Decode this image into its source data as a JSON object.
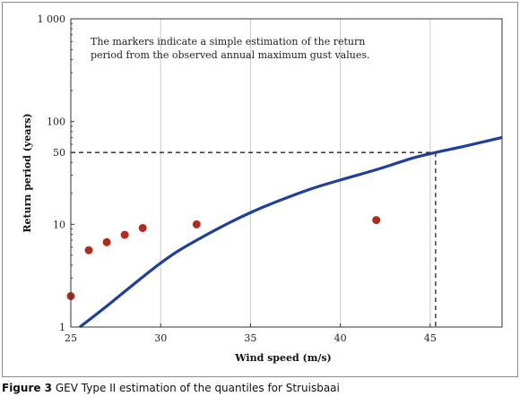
{
  "caption": {
    "label": "Figure 3",
    "text": "GEV Type II estimation of the quantiles for Struisbaai"
  },
  "chart_data": {
    "type": "scatter",
    "xlabel": "Wind speed (m/s)",
    "ylabel": "Return period (years)",
    "xlim": [
      25,
      49
    ],
    "ylim": [
      1,
      1000
    ],
    "y_scale": "log",
    "x_ticks": [
      25,
      30,
      35,
      40,
      45
    ],
    "x_tick_labels": [
      "25",
      "30",
      "35",
      "40",
      "45"
    ],
    "y_ticks": [
      1,
      10,
      50,
      100,
      1000
    ],
    "y_tick_labels": [
      "1",
      "10",
      "50",
      "100",
      "1 000"
    ],
    "grid": "vertical",
    "annotation": [
      "The markers indicate a simple estimation of the return",
      "period from the observed annual maximum gust values."
    ],
    "markers": {
      "color": "#b22a1c",
      "points": [
        {
          "x": 25,
          "y": 2.0
        },
        {
          "x": 26,
          "y": 5.6
        },
        {
          "x": 27,
          "y": 6.7
        },
        {
          "x": 28,
          "y": 7.9
        },
        {
          "x": 29,
          "y": 9.2
        },
        {
          "x": 32,
          "y": 10.0
        },
        {
          "x": 42,
          "y": 11.0
        }
      ]
    },
    "curve": {
      "color": "#1f3f99",
      "points": [
        {
          "x": 25.5,
          "y": 1.0
        },
        {
          "x": 27,
          "y": 1.6
        },
        {
          "x": 30,
          "y": 4.2
        },
        {
          "x": 32,
          "y": 7.0
        },
        {
          "x": 35,
          "y": 13.0
        },
        {
          "x": 38,
          "y": 21.0
        },
        {
          "x": 40,
          "y": 27.0
        },
        {
          "x": 42,
          "y": 34.0
        },
        {
          "x": 44,
          "y": 44.0
        },
        {
          "x": 45.3,
          "y": 50.0
        },
        {
          "x": 47,
          "y": 58.0
        },
        {
          "x": 49,
          "y": 70.0
        }
      ]
    },
    "reference": {
      "x": 45.3,
      "y": 50
    }
  }
}
